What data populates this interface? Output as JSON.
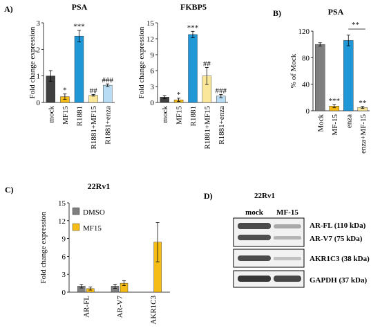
{
  "panels": {
    "a": {
      "label": "A)"
    },
    "b": {
      "label": "B)"
    },
    "c": {
      "label": "C)"
    },
    "d": {
      "label": "D)"
    }
  },
  "colors": {
    "dark": "#3f3f3f",
    "gold": "#f5bc18",
    "blue": "#1f97d7",
    "lightyellow": "#fae79a",
    "lightblue": "#b7dcf3",
    "gray": "#7f7f7f"
  },
  "chart_data": [
    {
      "id": "psa_a",
      "type": "bar",
      "title": "PSA",
      "ylabel": "Fold change expression",
      "ylim": [
        0,
        3
      ],
      "yticks": [
        "0",
        "1",
        "2",
        "3"
      ],
      "categories": [
        "mock",
        "MF15",
        "R1881",
        "R1881+MF15",
        "R1881+enza"
      ],
      "values": [
        1.0,
        0.22,
        2.5,
        0.27,
        0.65
      ],
      "errors": [
        0.2,
        0.1,
        0.22,
        0.03,
        0.05
      ],
      "colors": [
        "#3f3f3f",
        "#f5bc18",
        "#1f97d7",
        "#fae79a",
        "#b7dcf3"
      ],
      "annotations": [
        "",
        "*",
        "***",
        "##",
        "###"
      ]
    },
    {
      "id": "fkbp5_a",
      "type": "bar",
      "title": "FKBP5",
      "ylabel": "Fold change expression",
      "ylim": [
        0,
        15
      ],
      "yticks": [
        "0",
        "3",
        "6",
        "9",
        "12",
        "15"
      ],
      "categories": [
        "mock",
        "MF15",
        "R1881",
        "R1881+MF15",
        "R1881+enza"
      ],
      "values": [
        1.0,
        0.5,
        12.8,
        5.0,
        1.2
      ],
      "errors": [
        0.3,
        0.3,
        0.6,
        1.6,
        0.3
      ],
      "colors": [
        "#3f3f3f",
        "#f5bc18",
        "#1f97d7",
        "#fae79a",
        "#b7dcf3"
      ],
      "annotations": [
        "",
        "*",
        "***",
        "##",
        "###"
      ]
    },
    {
      "id": "psa_b",
      "type": "bar",
      "title": "PSA",
      "ylabel": "% of Mock",
      "ylim": [
        0,
        120
      ],
      "yticks": [
        "0",
        "40",
        "80",
        "120"
      ],
      "categories": [
        "Mock",
        "MF-15",
        "enza",
        "enza+MF-15"
      ],
      "values": [
        100,
        7,
        106,
        5
      ],
      "errors": [
        2.5,
        2.5,
        8,
        1.5
      ],
      "colors": [
        "#7f7f7f",
        "#f5bc18",
        "#1f97d7",
        "#fae79a"
      ],
      "annotations": [
        "",
        "***",
        "",
        "**"
      ],
      "bracket_label": "**"
    },
    {
      "id": "c_22rv1",
      "type": "bar",
      "title": "22Rv1",
      "ylabel": "Fold change expression",
      "ylim": [
        0,
        15
      ],
      "yticks": [
        "0",
        "3",
        "6",
        "9",
        "12",
        "15"
      ],
      "categories": [
        "AR-FL",
        "AR-V7",
        "AKR1C3"
      ],
      "series": [
        {
          "name": "DMSO",
          "color": "#7f7f7f",
          "values": [
            1.0,
            1.0,
            0
          ],
          "errors": [
            0.3,
            0.35,
            0
          ]
        },
        {
          "name": "MF15",
          "color": "#f5bc18",
          "values": [
            0.6,
            1.5,
            8.4
          ],
          "errors": [
            0.25,
            0.4,
            3.3
          ]
        }
      ],
      "legend": "top-left"
    }
  ],
  "blot": {
    "title": "22Rv1",
    "lanes": [
      "mock",
      "MF-15"
    ],
    "labels": [
      "AR-FL (110 kDa)",
      "AR-V7 (75 kDa)",
      "AKR1C3 (38 kDa)",
      "GAPDH (37 kDa)"
    ]
  }
}
